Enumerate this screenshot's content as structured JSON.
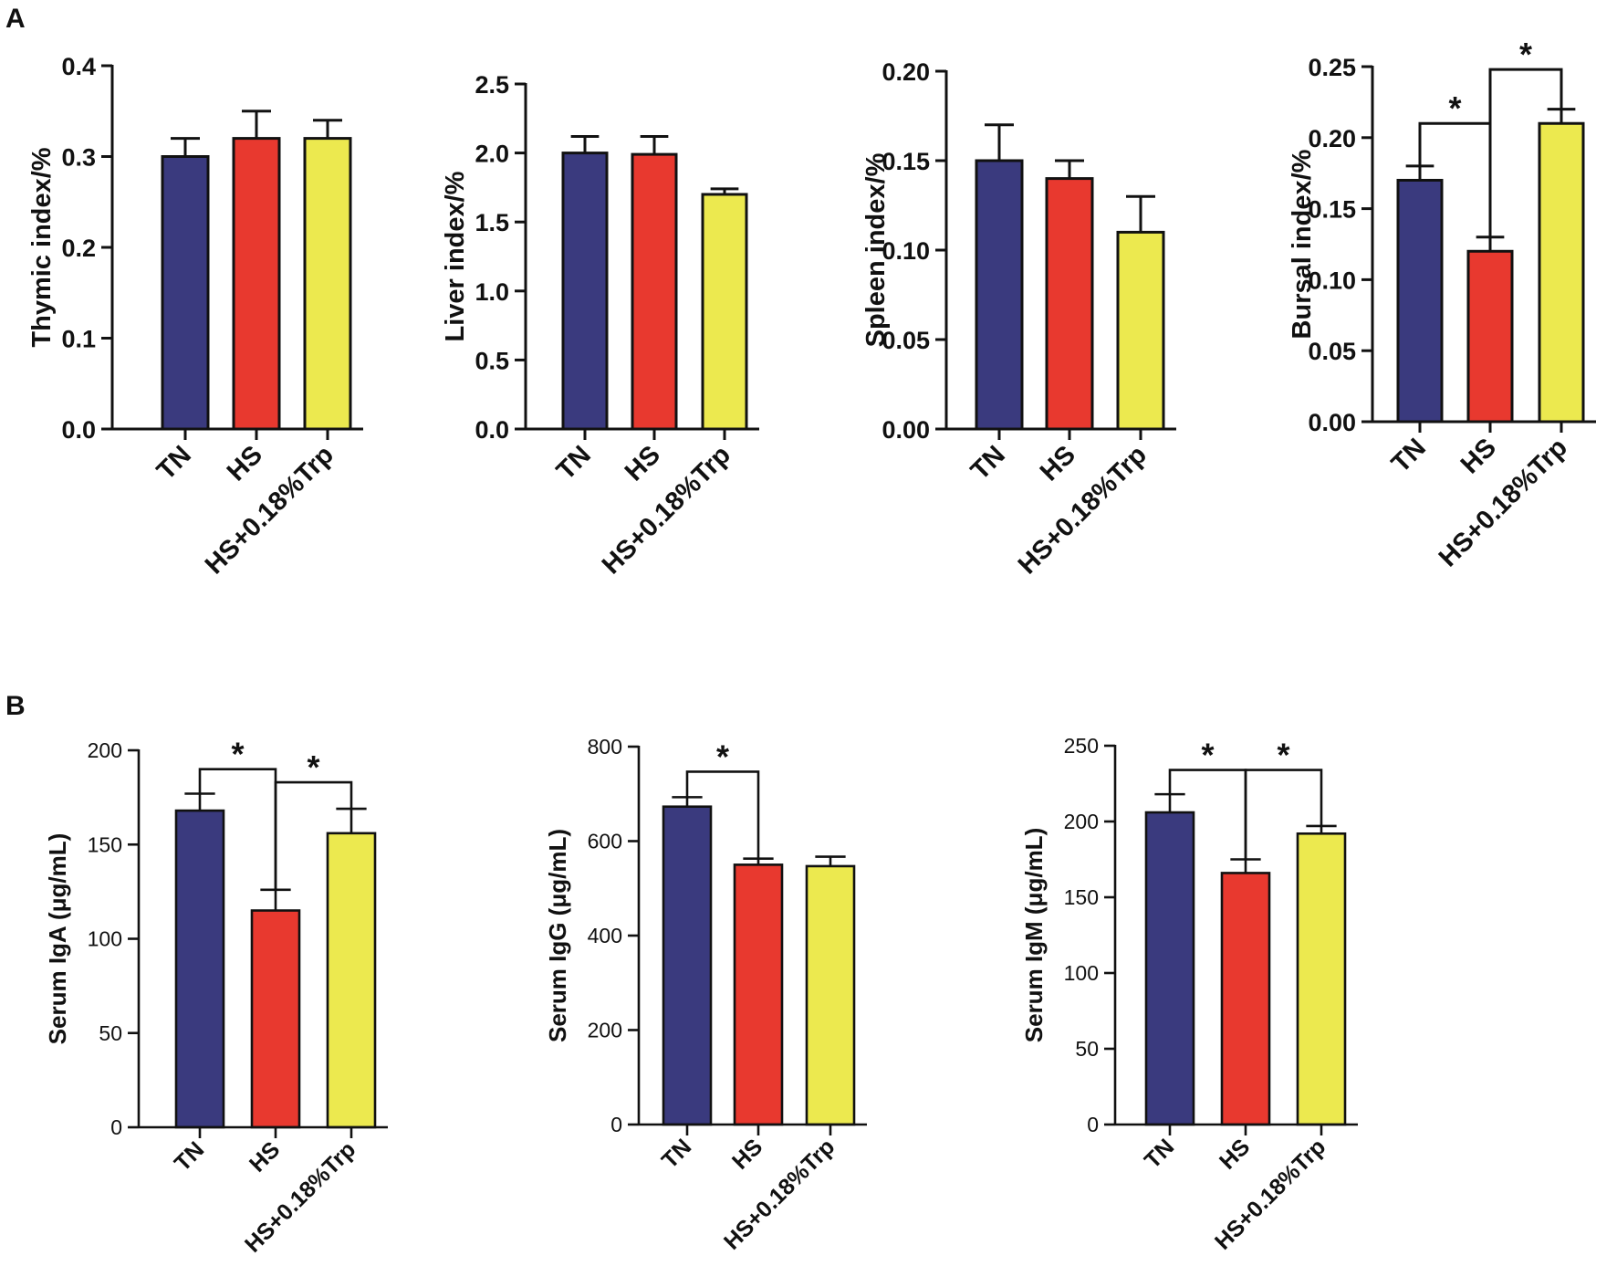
{
  "panels": [
    {
      "id": "A",
      "label": "A"
    },
    {
      "id": "B",
      "label": "B"
    }
  ],
  "colors": {
    "TN": "#3a3a7e",
    "HS": "#e8392f",
    "HS+0.18%Trp": "#ece94f",
    "axis": "#111111"
  },
  "chart_data": [
    {
      "type": "bar",
      "panel": "A",
      "title": "",
      "ylabel": "Thymic index/%",
      "categories": [
        "TN",
        "HS",
        "HS+0.18%Trp"
      ],
      "values": [
        0.3,
        0.32,
        0.32
      ],
      "errors": [
        0.02,
        0.03,
        0.02
      ],
      "ylim": [
        0,
        0.4
      ],
      "yticks": [
        0.0,
        0.1,
        0.2,
        0.3,
        0.4
      ],
      "ytick_labels": [
        "0.0",
        "0.1",
        "0.2",
        "0.3",
        "0.4"
      ],
      "significance": []
    },
    {
      "type": "bar",
      "panel": "A",
      "title": "",
      "ylabel": "Liver index/%",
      "categories": [
        "TN",
        "HS",
        "HS+0.18%Trp"
      ],
      "values": [
        2.0,
        1.99,
        1.7
      ],
      "errors": [
        0.12,
        0.13,
        0.04
      ],
      "ylim": [
        0,
        2.5
      ],
      "yticks": [
        0.0,
        0.5,
        1.0,
        1.5,
        2.0,
        2.5
      ],
      "ytick_labels": [
        "0.0",
        "0.5",
        "1.0",
        "1.5",
        "2.0",
        "2.5"
      ],
      "significance": []
    },
    {
      "type": "bar",
      "panel": "A",
      "title": "",
      "ylabel": "Spleen index/%",
      "categories": [
        "TN",
        "HS",
        "HS+0.18%Trp"
      ],
      "values": [
        0.15,
        0.14,
        0.11
      ],
      "errors": [
        0.02,
        0.01,
        0.02
      ],
      "ylim": [
        0,
        0.2
      ],
      "yticks": [
        0.0,
        0.05,
        0.1,
        0.15,
        0.2
      ],
      "ytick_labels": [
        "0.00",
        "0.05",
        "0.10",
        "0.15",
        "0.20"
      ],
      "significance": []
    },
    {
      "type": "bar",
      "panel": "A",
      "title": "",
      "ylabel": "Bursal index/%",
      "categories": [
        "TN",
        "HS",
        "HS+0.18%Trp"
      ],
      "values": [
        0.17,
        0.12,
        0.21
      ],
      "errors": [
        0.01,
        0.01,
        0.01
      ],
      "ylim": [
        0,
        0.25
      ],
      "yticks": [
        0.0,
        0.05,
        0.1,
        0.15,
        0.2,
        0.25
      ],
      "ytick_labels": [
        "0.00",
        "0.05",
        "0.10",
        "0.15",
        "0.20",
        "0.25"
      ],
      "significance": [
        {
          "from": 0,
          "to": 1,
          "level": 0.21,
          "label": "*"
        },
        {
          "from": 1,
          "to": 2,
          "level": 0.248,
          "label": "*"
        }
      ]
    },
    {
      "type": "bar",
      "panel": "B",
      "title": "",
      "ylabel": "Serum IgA (μg/mL)",
      "categories": [
        "TN",
        "HS",
        "HS+0.18%Trp"
      ],
      "values": [
        168,
        115,
        156
      ],
      "errors": [
        9,
        11,
        13
      ],
      "ylim": [
        0,
        200
      ],
      "yticks": [
        0,
        50,
        100,
        150,
        200
      ],
      "ytick_labels": [
        "0",
        "50",
        "100",
        "150",
        "200"
      ],
      "significance": [
        {
          "from": 0,
          "to": 1,
          "level": 190,
          "label": "*"
        },
        {
          "from": 1,
          "to": 2,
          "level": 183,
          "label": "*"
        }
      ]
    },
    {
      "type": "bar",
      "panel": "B",
      "title": "",
      "ylabel": "Serum IgG (μg/mL)",
      "categories": [
        "TN",
        "HS",
        "HS+0.18%Trp"
      ],
      "values": [
        673,
        550,
        547
      ],
      "errors": [
        20,
        13,
        20
      ],
      "ylim": [
        0,
        800
      ],
      "yticks": [
        0,
        200,
        400,
        600,
        800
      ],
      "ytick_labels": [
        "0",
        "200",
        "400",
        "600",
        "800"
      ],
      "significance": [
        {
          "from": 0,
          "to": 1,
          "level": 747,
          "label": "*"
        }
      ]
    },
    {
      "type": "bar",
      "panel": "B",
      "title": "",
      "ylabel": "Serum IgM (μg/mL)",
      "categories": [
        "TN",
        "HS",
        "HS+0.18%Trp"
      ],
      "values": [
        206,
        166,
        192
      ],
      "errors": [
        12,
        9,
        5
      ],
      "ylim": [
        0,
        250
      ],
      "yticks": [
        0,
        50,
        100,
        150,
        200,
        250
      ],
      "ytick_labels": [
        "0",
        "50",
        "100",
        "150",
        "200",
        "250"
      ],
      "significance": [
        {
          "from": 0,
          "to": 1,
          "level": 234,
          "label": "*"
        },
        {
          "from": 1,
          "to": 2,
          "level": 234,
          "label": "*"
        }
      ]
    }
  ]
}
